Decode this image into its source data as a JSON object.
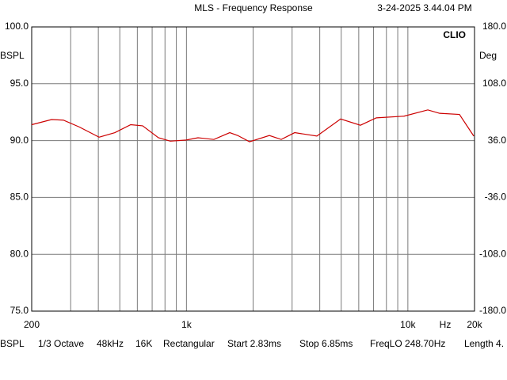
{
  "chart_data": {
    "type": "line",
    "title": "MLS - Frequency Response",
    "timestamp": "3-24-2025 3.44.04 PM",
    "brand": "CLIO",
    "ylabel": "BSPL",
    "y2label": "Deg",
    "xlabel": "Hz",
    "xscale": "log",
    "xlim": [
      200,
      20000
    ],
    "xticks": [
      200,
      {
        "value": 1000,
        "label": "1k"
      },
      {
        "value": 10000,
        "label": "10k"
      },
      {
        "value": 20000,
        "label": "20k"
      }
    ],
    "xgrid_minor": [
      300,
      400,
      500,
      600,
      700,
      800,
      900,
      2000,
      3000,
      4000,
      5000,
      6000,
      7000,
      8000,
      9000
    ],
    "ylim": [
      75,
      100
    ],
    "yticks": [
      {
        "value": 75,
        "label": "75.0"
      },
      {
        "value": 80,
        "label": "80.0"
      },
      {
        "value": 85,
        "label": "85.0"
      },
      {
        "value": 90,
        "label": "90.0"
      },
      {
        "value": 95,
        "label": "95.0"
      },
      {
        "value": 100,
        "label": "100.0"
      }
    ],
    "y2lim": [
      -180,
      180
    ],
    "y2ticks": [
      {
        "value": -180,
        "label": "-180.0"
      },
      {
        "value": -108,
        "label": "-108.0"
      },
      {
        "value": -36,
        "label": "-36.0"
      },
      {
        "value": 36,
        "label": "36.0"
      },
      {
        "value": 108,
        "label": "108.0"
      },
      {
        "value": 180,
        "label": "180.0"
      }
    ],
    "grid": true,
    "x": [
      200,
      246,
      278,
      328,
      403,
      475,
      560,
      634,
      747,
      846,
      997,
      1128,
      1330,
      1569,
      1704,
      1927,
      2368,
      2680,
      3082,
      3882,
      4970,
      6106,
      7202,
      9608,
      12304,
      13920,
      17100,
      19840
    ],
    "series": [
      {
        "color": "#cc0000",
        "values": [
          91.4,
          91.85,
          91.8,
          91.2,
          90.3,
          90.7,
          91.4,
          91.3,
          90.25,
          89.95,
          90.05,
          90.25,
          90.1,
          90.7,
          90.45,
          89.9,
          90.45,
          90.1,
          90.7,
          90.4,
          91.9,
          91.35,
          92.0,
          92.15,
          92.7,
          92.4,
          92.3,
          90.4
        ]
      }
    ],
    "footer": [
      "BSPL",
      "1/3 Octave",
      "48kHz",
      "16K",
      "Rectangular",
      "Start 2.83ms",
      "Stop 6.85ms",
      "FreqLO 248.70Hz",
      "Length 4."
    ]
  }
}
